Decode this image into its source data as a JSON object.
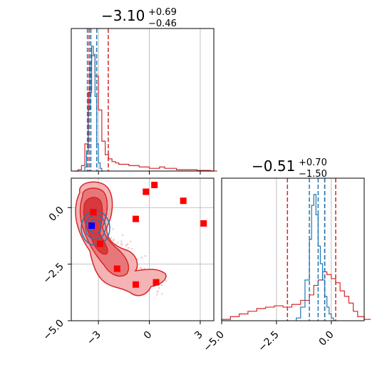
{
  "colors": {
    "blue": "#1f77b4",
    "red": "#d62728",
    "red_fill_light": "#f4b3b4",
    "red_fill_mid": "#e8777a",
    "red_fill_dark": "#d8393c",
    "marker_red": "#ff0000",
    "marker_blue": "#0000ff",
    "grid": "#b0b0b0"
  },
  "chart_data": [
    {
      "panel": "marginal-x",
      "type": "histogram",
      "title": {
        "value": "−3.10",
        "sup": "+0.69",
        "sub": "−0.46"
      },
      "xlim": [
        -4.6,
        3.8
      ],
      "ylim": [
        0,
        1.05
      ],
      "grid": true,
      "vlines": {
        "blue": [
          -3.65,
          -3.45,
          -3.1
        ],
        "red": [
          -3.55,
          -3.45,
          -2.42
        ]
      },
      "series": [
        {
          "color": "blue",
          "x": [
            -3.8,
            -3.7,
            -3.6,
            -3.5,
            -3.4,
            -3.3,
            -3.2,
            -3.1,
            -3.0,
            -2.9,
            -2.8
          ],
          "y": [
            0.03,
            0.15,
            0.45,
            0.8,
            0.92,
            0.86,
            0.55,
            0.2,
            0.06,
            0.02,
            0.0
          ]
        },
        {
          "color": "red",
          "x": [
            -4.4,
            -4.2,
            -4.0,
            -3.8,
            -3.6,
            -3.4,
            -3.2,
            -3.0,
            -2.8,
            -2.6,
            -2.4,
            -2.2,
            -2.0,
            -1.8,
            -1.5,
            -1.2,
            -0.9,
            -0.6,
            -0.3,
            0.0,
            0.3,
            0.6,
            0.9,
            1.2,
            1.6,
            2.0,
            2.4,
            2.8,
            3.2,
            3.6
          ],
          "y": [
            0.0,
            0.01,
            0.04,
            0.2,
            0.58,
            0.85,
            0.7,
            0.45,
            0.22,
            0.12,
            0.09,
            0.07,
            0.06,
            0.05,
            0.05,
            0.04,
            0.04,
            0.03,
            0.03,
            0.02,
            0.02,
            0.03,
            0.02,
            0.02,
            0.01,
            0.01,
            0.01,
            0.005,
            0.005,
            0.0
          ]
        }
      ]
    },
    {
      "panel": "marginal-y",
      "type": "histogram",
      "title": {
        "value": "−0.51",
        "sup": "+0.70",
        "sub": "−1.50"
      },
      "xlim": [
        -5.0,
        1.5
      ],
      "ylim": [
        0,
        1.05
      ],
      "xticks": [
        -5.0,
        -2.5,
        0.0
      ],
      "xtick_labels": [
        "−5.0",
        "−2.5",
        "0.0"
      ],
      "grid": true,
      "vlines": {
        "blue": [
          -1.0,
          -0.6,
          -0.3
        ],
        "red": [
          -2.0,
          -0.3,
          0.2
        ]
      },
      "series": [
        {
          "color": "blue",
          "x": [
            -1.6,
            -1.4,
            -1.2,
            -1.0,
            -0.9,
            -0.8,
            -0.7,
            -0.6,
            -0.5,
            -0.4,
            -0.3,
            -0.2,
            -0.1,
            0.0,
            0.1
          ],
          "y": [
            0.02,
            0.1,
            0.3,
            0.6,
            0.85,
            0.93,
            0.78,
            0.55,
            0.42,
            0.3,
            0.18,
            0.1,
            0.05,
            0.02,
            0.0
          ]
        },
        {
          "color": "red",
          "x": [
            -5.0,
            -4.6,
            -4.2,
            -3.8,
            -3.4,
            -3.0,
            -2.6,
            -2.2,
            -1.8,
            -1.4,
            -1.0,
            -0.8,
            -0.6,
            -0.4,
            -0.2,
            0.0,
            0.2,
            0.4,
            0.6,
            0.8,
            1.0,
            1.2,
            1.5
          ],
          "y": [
            0.01,
            0.03,
            0.05,
            0.07,
            0.09,
            0.1,
            0.11,
            0.1,
            0.12,
            0.15,
            0.19,
            0.26,
            0.3,
            0.36,
            0.34,
            0.31,
            0.28,
            0.22,
            0.18,
            0.13,
            0.07,
            0.03,
            0.01
          ]
        }
      ]
    },
    {
      "panel": "joint",
      "type": "scatter",
      "xlim": [
        -4.6,
        3.8
      ],
      "ylim": [
        -5.0,
        1.3
      ],
      "xticks": [
        -3,
        0,
        3
      ],
      "xtick_labels": [
        "−3",
        "0",
        "3"
      ],
      "yticks": [
        0.0,
        -2.5,
        -5.0
      ],
      "ytick_labels": [
        "0.0",
        "−2.5",
        "−5.0"
      ],
      "grid": true,
      "red_markers": [
        {
          "x": 0.3,
          "y": 1.0
        },
        {
          "x": -0.2,
          "y": 0.7
        },
        {
          "x": 2.0,
          "y": 0.3
        },
        {
          "x": 3.2,
          "y": -0.7
        },
        {
          "x": -0.8,
          "y": -0.5
        },
        {
          "x": -3.3,
          "y": -0.2
        },
        {
          "x": -2.9,
          "y": -1.6
        },
        {
          "x": -1.9,
          "y": -2.7
        },
        {
          "x": -0.8,
          "y": -3.4
        },
        {
          "x": 0.4,
          "y": -3.3
        }
      ],
      "blue_marker": {
        "x": -3.4,
        "y": -0.8
      }
    }
  ]
}
